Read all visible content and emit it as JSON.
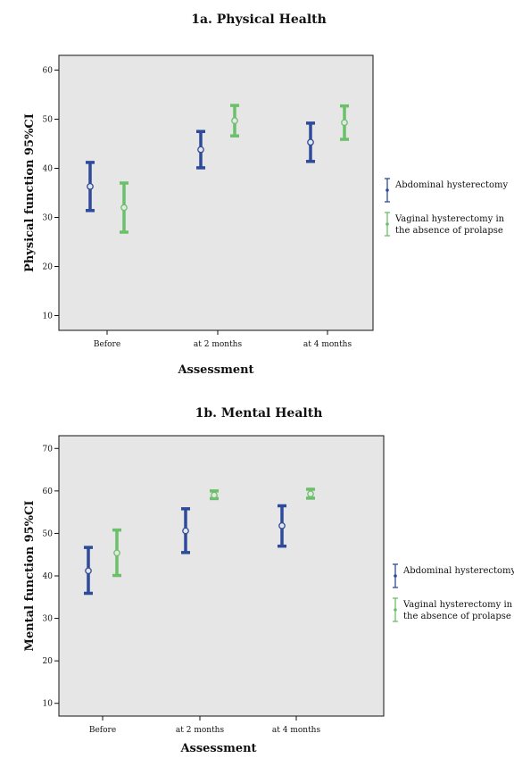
{
  "chart_data": [
    {
      "type": "errorbar",
      "title": "1a. Physical Health",
      "xlabel": "Assessment",
      "ylabel": "Physical function 95%CI",
      "categories": [
        "Before",
        "at 2 months",
        "at 4 months"
      ],
      "ylim": [
        7,
        63
      ],
      "yticks": [
        10,
        20,
        30,
        40,
        50,
        60
      ],
      "legend_position": "right",
      "series": [
        {
          "name": "Abdominal hysterectomy",
          "color": "#2e4a9a",
          "mean": [
            36.3,
            43.8,
            45.3
          ],
          "lower": [
            31.4,
            40.1,
            41.4
          ],
          "upper": [
            41.2,
            47.5,
            49.2
          ]
        },
        {
          "name": "Vaginal hysterectomy in the absence of prolapse",
          "color": "#6cc06a",
          "mean": [
            32.0,
            49.7,
            49.3
          ],
          "lower": [
            27.0,
            46.6,
            45.9
          ],
          "upper": [
            37.0,
            52.8,
            52.7
          ]
        }
      ]
    },
    {
      "type": "errorbar",
      "title": "1b. Mental Health",
      "xlabel": "Assessment",
      "ylabel": "Mental function 95%CI",
      "categories": [
        "Before",
        "at 2 months",
        "at 4 months"
      ],
      "ylim": [
        7,
        73
      ],
      "yticks": [
        10,
        20,
        30,
        40,
        50,
        60,
        70
      ],
      "legend_position": "right",
      "series": [
        {
          "name": "Abdominal hysterectomy",
          "color": "#2e4a9a",
          "mean": [
            41.2,
            50.6,
            51.8
          ],
          "lower": [
            35.9,
            45.5,
            47.0
          ],
          "upper": [
            46.7,
            55.8,
            56.5
          ]
        },
        {
          "name": "Vaginal hysterectomy in the absence of prolapse",
          "color": "#6cc06a",
          "mean": [
            45.4,
            59.0,
            59.3
          ],
          "lower": [
            40.1,
            58.2,
            58.3
          ],
          "upper": [
            50.8,
            60.0,
            60.4
          ]
        }
      ]
    }
  ]
}
